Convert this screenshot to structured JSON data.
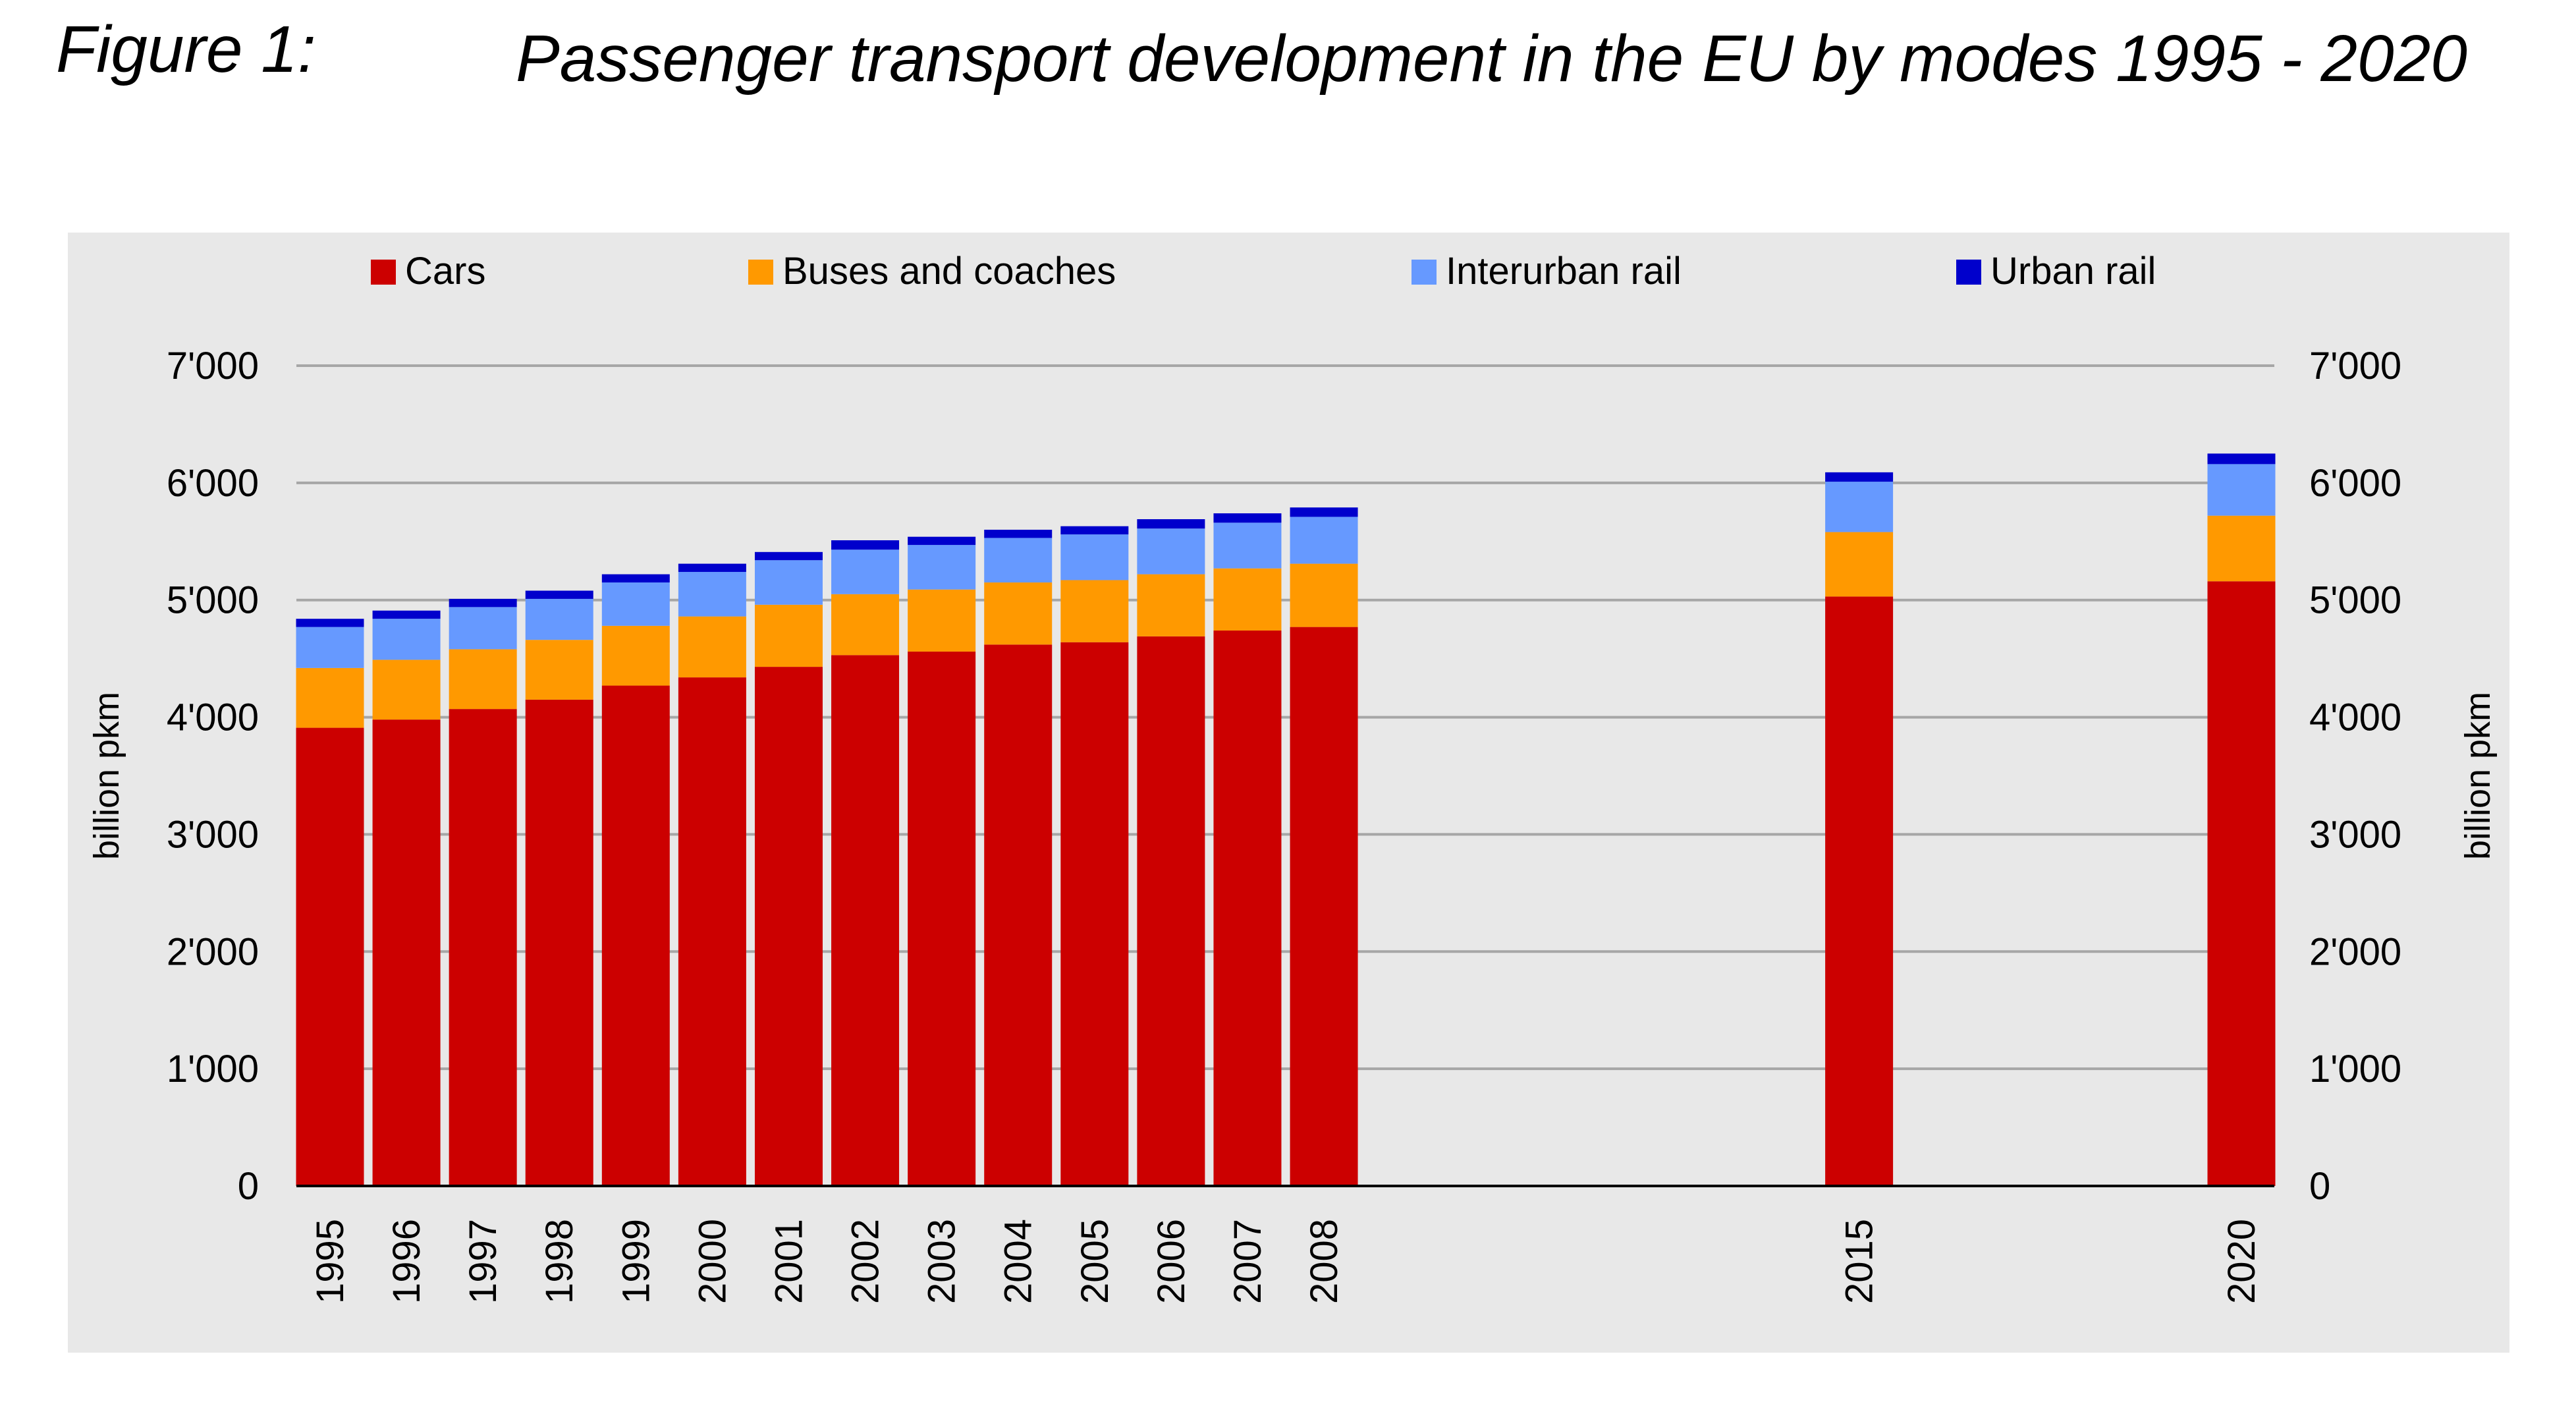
{
  "figure": {
    "label": "Figure 1:",
    "title": "Passenger transport development in the EU by modes 1995 - 2020"
  },
  "colors": {
    "cars": "#cc0000",
    "buses": "#ff9900",
    "interurban": "#6699ff",
    "urban": "#0000cc",
    "grid": "#a6a6a6",
    "panel": "#e8e8e8"
  },
  "chart_data": {
    "type": "bar",
    "stacked": true,
    "title": "Passenger transport development in the EU by modes 1995 - 2020",
    "ylabel_left": "billion pkm",
    "ylabel_right": "billion pkm",
    "ylim": [
      0,
      7000
    ],
    "yticks": [
      0,
      1000,
      2000,
      3000,
      4000,
      5000,
      6000,
      7000
    ],
    "ytick_labels": [
      "0",
      "1'000",
      "2'000",
      "3'000",
      "4'000",
      "5'000",
      "6'000",
      "7'000"
    ],
    "grid": true,
    "legend_position": "top",
    "categories": [
      "1995",
      "1996",
      "1997",
      "1998",
      "1999",
      "2000",
      "2001",
      "2002",
      "2003",
      "2004",
      "2005",
      "2006",
      "2007",
      "2008",
      "2015",
      "2020"
    ],
    "x": [
      1995,
      1996,
      1997,
      1998,
      1999,
      2000,
      2001,
      2002,
      2003,
      2004,
      2005,
      2006,
      2007,
      2008,
      2015,
      2020
    ],
    "series": [
      {
        "name": "Cars",
        "color": "#cc0000",
        "values": [
          3910,
          3980,
          4070,
          4150,
          4270,
          4340,
          4430,
          4530,
          4560,
          4620,
          4640,
          4690,
          4740,
          4770,
          5030,
          5160
        ]
      },
      {
        "name": "Buses and coaches",
        "color": "#ff9900",
        "values": [
          510,
          510,
          510,
          510,
          510,
          520,
          530,
          520,
          530,
          530,
          530,
          530,
          530,
          540,
          550,
          560
        ]
      },
      {
        "name": "Interurban rail",
        "color": "#6699ff",
        "values": [
          350,
          350,
          360,
          350,
          370,
          380,
          380,
          380,
          380,
          380,
          390,
          390,
          390,
          400,
          430,
          440
        ]
      },
      {
        "name": "Urban rail",
        "color": "#0000cc",
        "values": [
          70,
          70,
          70,
          70,
          70,
          70,
          70,
          80,
          70,
          70,
          70,
          80,
          80,
          80,
          80,
          90
        ]
      }
    ]
  }
}
